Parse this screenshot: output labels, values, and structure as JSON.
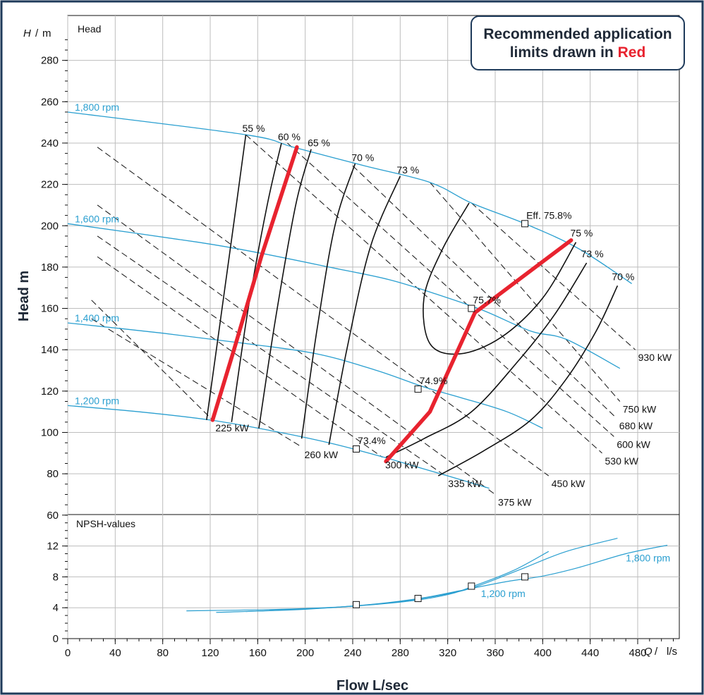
{
  "note": {
    "text": "Recommended application limits drawn in",
    "highlight": "Red"
  },
  "chart_data": [
    {
      "type": "line",
      "panel": "head",
      "panel_label": "Head",
      "ylabel_symbol": "H",
      "ylabel_unit": "m",
      "ylabel": "Head m",
      "xlim": [
        0,
        500
      ],
      "ylim": [
        60,
        290
      ],
      "yticks": [
        60,
        80,
        100,
        120,
        140,
        160,
        180,
        200,
        220,
        240,
        260,
        280
      ],
      "grid": true,
      "colors": {
        "speed": "#2a9fd0",
        "efficiency": "#111111",
        "power": "#111111",
        "limits": "#e8232f"
      },
      "speed_curves": [
        {
          "name": "1,800 rpm",
          "points": [
            [
              0,
              255
            ],
            [
              150,
              244
            ],
            [
              190,
              238
            ],
            [
              250,
              229
            ],
            [
              305,
              221
            ],
            [
              340,
              211
            ],
            [
              385,
              201
            ],
            [
              430,
              189
            ],
            [
              475,
              172
            ]
          ]
        },
        {
          "name": "1,600 rpm",
          "points": [
            [
              0,
              201
            ],
            [
              110,
              192
            ],
            [
              160,
              187
            ],
            [
              220,
              180
            ],
            [
              270,
              174
            ],
            [
              310,
              167
            ],
            [
              350,
              159
            ],
            [
              390,
              149
            ],
            [
              420,
              145
            ],
            [
              465,
              131
            ]
          ]
        },
        {
          "name": "1,400 rpm",
          "points": [
            [
              0,
              153
            ],
            [
              80,
              148
            ],
            [
              150,
              143
            ],
            [
              210,
              138
            ],
            [
              260,
              130
            ],
            [
              300,
              122
            ],
            [
              330,
              117
            ],
            [
              370,
              110
            ],
            [
              400,
              102
            ]
          ]
        },
        {
          "name": "1,200 rpm",
          "points": [
            [
              0,
              113
            ],
            [
              60,
              110
            ],
            [
              120,
              106
            ],
            [
              170,
              101
            ],
            [
              220,
              95
            ],
            [
              260,
              89
            ],
            [
              290,
              84
            ],
            [
              320,
              79
            ],
            [
              355,
              73
            ]
          ]
        }
      ],
      "efficiency_curves": [
        {
          "label": "55 %",
          "points": [
            [
              117,
              106
            ],
            [
              130,
              160
            ],
            [
              142,
              210
            ],
            [
              150,
              244
            ]
          ]
        },
        {
          "label": "60 %",
          "points": [
            [
              138,
              105
            ],
            [
              152,
              160
            ],
            [
              168,
              210
            ],
            [
              180,
              240
            ]
          ]
        },
        {
          "label": "65 %",
          "points": [
            [
              161,
              102
            ],
            [
              175,
              155
            ],
            [
              192,
              210
            ],
            [
              205,
              237
            ]
          ]
        },
        {
          "label": "70 %",
          "points": [
            [
              197,
              97
            ],
            [
              210,
              150
            ],
            [
              225,
              200
            ],
            [
              242,
              230
            ]
          ]
        },
        {
          "label": "73 %",
          "points": [
            [
              220,
              94
            ],
            [
              235,
              140
            ],
            [
              255,
              190
            ],
            [
              280,
              224
            ]
          ]
        },
        {
          "label": "75 %",
          "points": [
            [
              338,
              211
            ],
            [
              315,
              188
            ],
            [
              300,
              165
            ],
            [
              305,
              143
            ],
            [
              330,
              138
            ],
            [
              365,
              146
            ],
            [
              400,
              165
            ],
            [
              428,
              192
            ]
          ]
        },
        {
          "label": "73 %",
          "points": [
            [
              268,
              88
            ],
            [
              300,
              97
            ],
            [
              340,
              110
            ],
            [
              380,
              135
            ],
            [
              410,
              157
            ],
            [
              437,
              182
            ]
          ]
        },
        {
          "label": "70 %",
          "points": [
            [
              312,
              79
            ],
            [
              350,
              91
            ],
            [
              390,
              106
            ],
            [
              420,
              126
            ],
            [
              445,
              149
            ],
            [
              463,
              171
            ]
          ]
        }
      ],
      "power_lines": [
        {
          "label": "225 kW",
          "from": [
            20,
            164
          ],
          "to": [
            122,
            106
          ]
        },
        {
          "label": "260 kW",
          "from": [
            20,
            155
          ],
          "to": [
            197,
            93
          ]
        },
        {
          "label": "300 kW",
          "from": [
            25,
            185
          ],
          "to": [
            265,
            88
          ]
        },
        {
          "label": "335 kW",
          "from": [
            25,
            195
          ],
          "to": [
            318,
            79
          ]
        },
        {
          "label": "375 kW",
          "from": [
            25,
            210
          ],
          "to": [
            360,
            70
          ]
        },
        {
          "label": "450 kW",
          "from": [
            25,
            238
          ],
          "to": [
            405,
            79
          ]
        },
        {
          "label": "530 kW",
          "from": [
            150,
            244
          ],
          "to": [
            450,
            90
          ]
        },
        {
          "label": "600 kW",
          "from": [
            185,
            240
          ],
          "to": [
            460,
            98
          ]
        },
        {
          "label": "680 kW",
          "from": [
            240,
            229
          ],
          "to": [
            462,
            107
          ]
        },
        {
          "label": "750 kW",
          "from": [
            305,
            221
          ],
          "to": [
            465,
            115
          ]
        },
        {
          "label": "930 kW",
          "from": [
            340,
            211
          ],
          "to": [
            478,
            140
          ]
        }
      ],
      "limit_lines": [
        {
          "name": "lower flow limit",
          "points": [
            [
              122,
              106
            ],
            [
              140,
              140
            ],
            [
              163,
              185
            ],
            [
              193,
              238
            ]
          ]
        },
        {
          "name": "upper flow limit",
          "points": [
            [
              268,
              86
            ],
            [
              305,
              110
            ],
            [
              343,
              158
            ],
            [
              424,
              193
            ]
          ]
        }
      ],
      "bep_markers": [
        {
          "label": "Eff.  75.8%",
          "x": 385,
          "y": 201
        },
        {
          "label": "75.7%",
          "x": 340,
          "y": 160
        },
        {
          "label": "74.9%",
          "x": 295,
          "y": 121
        },
        {
          "label": "73.4%",
          "x": 243,
          "y": 92
        }
      ],
      "rpm_labels": [
        "1,800 rpm",
        "1,600 rpm",
        "1,400 rpm",
        "1,200 rpm"
      ]
    },
    {
      "type": "line",
      "panel": "npsh",
      "panel_label": "NPSH-values",
      "xlim": [
        0,
        500
      ],
      "ylim": [
        0,
        15.5
      ],
      "yticks": [
        0,
        4,
        8,
        12
      ],
      "xticks": [
        0,
        40,
        80,
        120,
        160,
        200,
        240,
        280,
        320,
        360,
        400,
        440,
        480
      ],
      "xlabel_symbol": "Q",
      "xlabel_unit": "l/s",
      "xlabel": "Flow L/sec",
      "grid": true,
      "series": [
        {
          "name": "1,200 rpm",
          "points": [
            [
              100,
              3.6
            ],
            [
              180,
              3.8
            ],
            [
              240,
              4.2
            ],
            [
              290,
              4.9
            ],
            [
              320,
              5.7
            ],
            [
              340,
              6.7
            ],
            [
              375,
              8.8
            ],
            [
              405,
              11.3
            ]
          ]
        },
        {
          "name": "1,800 rpm",
          "points": [
            [
              125,
              3.4
            ],
            [
              200,
              3.8
            ],
            [
              260,
              4.5
            ],
            [
              300,
              5.3
            ],
            [
              330,
              6.2
            ],
            [
              370,
              7.4
            ],
            [
              400,
              8.1
            ],
            [
              430,
              9.2
            ],
            [
              470,
              11.0
            ],
            [
              505,
              12.1
            ]
          ]
        },
        {
          "name": "",
          "points": [
            [
              150,
              3.5
            ],
            [
              230,
              4.1
            ],
            [
              280,
              4.8
            ],
            [
              320,
              5.8
            ],
            [
              345,
              6.8
            ],
            [
              385,
              9.2
            ],
            [
              420,
              11.3
            ],
            [
              463,
              13.0
            ]
          ]
        }
      ],
      "markers": [
        [
          243,
          4.4
        ],
        [
          295,
          5.2
        ],
        [
          340,
          6.8
        ],
        [
          385,
          8.0
        ]
      ],
      "curve_labels": [
        "1,200 rpm",
        "1,800 rpm"
      ]
    }
  ]
}
